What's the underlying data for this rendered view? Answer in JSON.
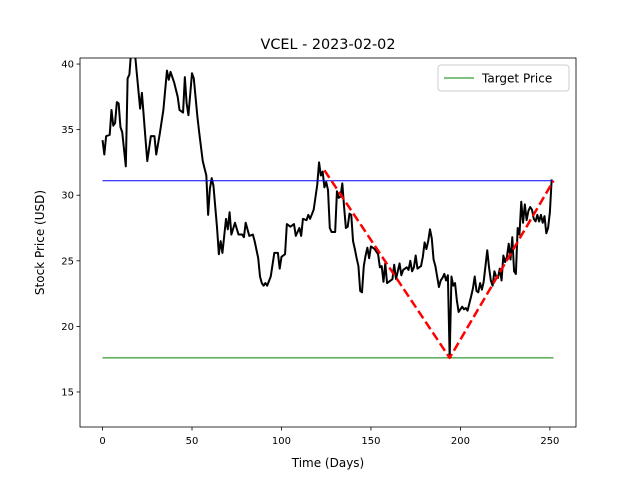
{
  "chart_data": {
    "type": "line",
    "title": "VCEL - 2023-02-02",
    "xlabel": "Time (Days)",
    "ylabel": "Stock Price (USD)",
    "xlim": [
      -12.6,
      264.6
    ],
    "ylim": [
      12.33,
      40.46
    ],
    "xticks": [
      0,
      50,
      100,
      150,
      200,
      250
    ],
    "yticks": [
      15,
      20,
      25,
      30,
      35,
      40
    ],
    "grid": false,
    "legend": "upper right",
    "series": [
      {
        "color": "#000000",
        "style": "solid",
        "width": 2,
        "x": [
          0,
          1,
          2,
          4,
          5,
          6,
          7,
          8,
          9,
          10,
          11,
          13,
          14,
          15,
          16,
          18,
          19,
          21,
          22,
          24,
          25,
          27,
          29,
          30,
          32,
          34,
          36,
          37,
          38,
          40,
          42,
          43,
          45,
          46,
          47,
          48,
          50,
          51,
          53,
          54,
          56,
          58,
          59,
          60,
          61,
          62,
          64,
          65,
          66,
          67,
          69,
          70,
          71,
          72,
          74,
          76,
          78,
          79,
          80,
          82,
          84,
          85,
          87,
          88,
          89,
          90,
          91,
          92,
          94,
          96,
          98,
          99,
          100,
          102,
          103,
          105,
          107,
          108,
          110,
          111,
          112,
          114,
          115,
          116,
          118,
          120,
          121,
          122,
          123,
          124,
          125,
          126,
          127,
          128,
          130,
          131,
          132,
          133,
          134,
          135,
          136,
          137,
          138,
          139,
          140,
          141,
          142,
          143,
          144,
          145,
          146,
          147,
          148,
          149,
          150,
          152,
          154,
          155,
          156,
          157,
          158,
          159,
          160,
          162,
          163,
          164,
          165,
          166,
          167,
          168,
          170,
          171,
          172,
          173,
          174,
          175,
          176,
          177,
          178,
          179,
          180,
          181,
          182,
          183,
          184,
          185,
          186,
          187,
          188,
          189,
          190,
          191,
          192,
          193,
          194,
          195,
          196,
          197,
          198,
          199,
          200,
          201,
          202,
          203,
          204,
          206,
          207,
          208,
          209,
          210,
          211,
          212,
          213,
          214,
          215,
          216,
          217,
          218,
          219,
          220,
          221,
          222,
          223,
          224,
          225,
          226,
          227,
          228,
          229,
          230,
          231,
          232,
          233,
          234,
          235,
          236,
          237,
          238,
          239,
          240,
          241,
          242,
          243,
          244,
          245,
          246,
          247,
          248,
          249,
          250,
          251
        ],
        "values": [
          34.2,
          33.1,
          34.5,
          34.6,
          36.5,
          35.3,
          35.5,
          37.1,
          37,
          35.2,
          34.8,
          32.2,
          38.9,
          39.2,
          41,
          41,
          39.5,
          36.6,
          37.8,
          34.3,
          32.6,
          34.5,
          34.5,
          33.1,
          34.7,
          36.5,
          39.5,
          38.8,
          39.4,
          38.6,
          37.5,
          36.5,
          36.3,
          39,
          37,
          36.1,
          39.3,
          38.9,
          36,
          34.8,
          32.6,
          31.5,
          28.5,
          30.5,
          31.3,
          30.7,
          27.5,
          25.5,
          26.5,
          25.6,
          28.2,
          27.4,
          28.7,
          27,
          27.9,
          27,
          27,
          26.8,
          27.9,
          26.9,
          27,
          26.5,
          25.2,
          23.8,
          23.3,
          23.1,
          23.3,
          23.1,
          23.8,
          25.6,
          25.6,
          24.4,
          25.3,
          25.5,
          27.8,
          27.6,
          27.8,
          26.9,
          27.5,
          26.9,
          28.2,
          28.1,
          28.5,
          28.2,
          28.9,
          30.8,
          32.5,
          31.5,
          31.8,
          30.6,
          31,
          30.4,
          27.5,
          27.2,
          27.2,
          30.3,
          29.8,
          29.9,
          30.9,
          29.1,
          27.5,
          27.6,
          28.6,
          28.5,
          26.5,
          25.9,
          25.2,
          24.6,
          22.7,
          22.6,
          24.6,
          25.4,
          26,
          25.2,
          26.1,
          25.9,
          25.5,
          24.5,
          24.6,
          23.4,
          24.8,
          23.3,
          23.4,
          23.6,
          24.7,
          23.6,
          24.2,
          24.8,
          23.9,
          24.3,
          24.5,
          24.3,
          25,
          24.2,
          24.5,
          25.4,
          24.4,
          24.5,
          24.6,
          25.3,
          26.4,
          25.9,
          26.5,
          27.4,
          26.7,
          25.1,
          24.6,
          23.8,
          23,
          23.5,
          23.7,
          24,
          23.5,
          23.9,
          17.6,
          23.8,
          23.1,
          23.3,
          22,
          21.1,
          21.3,
          21.5,
          21.3,
          21.4,
          21.2,
          22.3,
          22.9,
          23.8,
          22.7,
          22.6,
          23.3,
          22.8,
          23.4,
          24.6,
          25.8,
          24.5,
          23.5,
          23.1,
          24.2,
          23.8,
          23.7,
          24.4,
          23.5,
          25.4,
          24.9,
          25.3,
          26.3,
          25.1,
          26.8,
          24.2,
          24,
          27.5,
          27,
          29.5,
          27.9,
          29.3,
          28.1,
          28.8,
          29.1,
          28.9,
          28.2,
          28,
          28.5,
          28,
          28.5,
          27.9,
          28.4,
          27.1,
          27.5,
          28.7,
          31.2
        ]
      },
      {
        "color": "#0000ff",
        "style": "solid",
        "width": 1,
        "x": [
          0,
          252
        ],
        "values": [
          31.1,
          31.1
        ]
      },
      {
        "name": "Target Price",
        "color": "#008000",
        "style": "solid",
        "width": 1,
        "x": [
          0,
          252
        ],
        "values": [
          17.6,
          17.6
        ]
      },
      {
        "color": "#ff0000",
        "style": "dashed",
        "width": 2.5,
        "x": [
          124,
          194,
          252
        ],
        "values": [
          31.9,
          17.6,
          31.1
        ]
      }
    ]
  }
}
